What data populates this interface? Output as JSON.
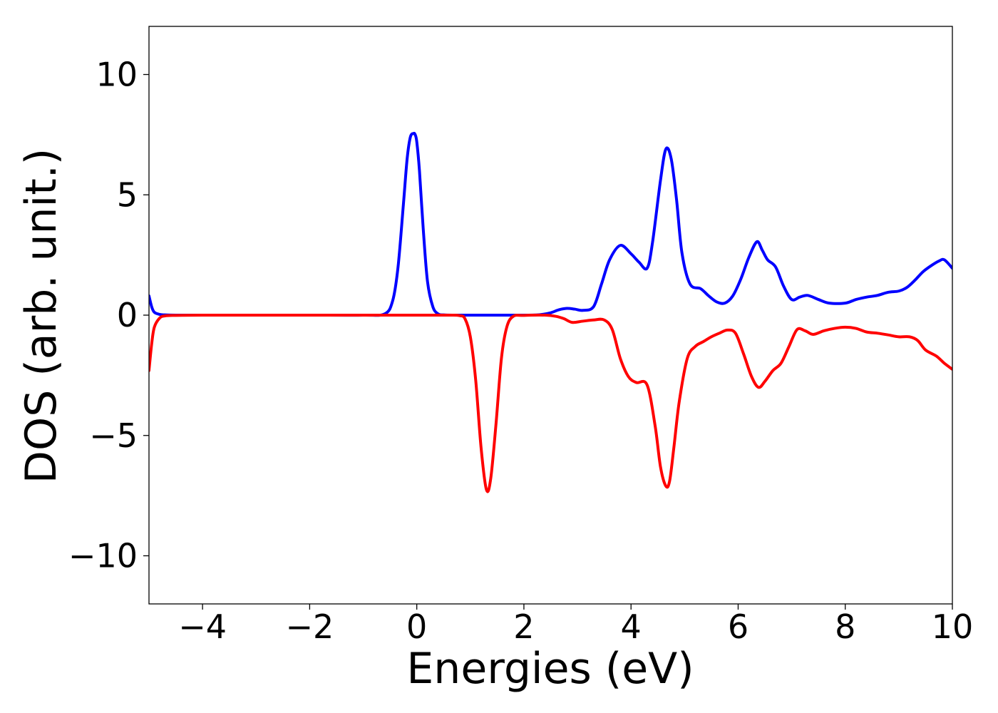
{
  "chart_data": {
    "type": "line",
    "title": "",
    "xlabel": "Energies (eV)",
    "ylabel": "DOS (arb. unit.)",
    "xlim": [
      -5,
      10
    ],
    "ylim": [
      -12,
      12
    ],
    "x_ticks": [
      -4,
      -2,
      0,
      2,
      4,
      6,
      8,
      10
    ],
    "y_ticks": [
      -10,
      -5,
      0,
      5,
      10
    ],
    "x_tick_labels": [
      "−4",
      "−2",
      "0",
      "2",
      "4",
      "6",
      "8",
      "10"
    ],
    "y_tick_labels": [
      "−10",
      "−5",
      "0",
      "5",
      "10"
    ],
    "grid": false,
    "legend": "none",
    "series": [
      {
        "color": "#0000ff",
        "x": [
          -5.0,
          -4.95,
          -4.9,
          -4.8,
          -4.7,
          -4.5,
          -4.0,
          -3.0,
          -2.0,
          -1.0,
          -0.6,
          -0.45,
          -0.35,
          -0.25,
          -0.18,
          -0.12,
          -0.06,
          -0.03,
          0.0,
          0.05,
          0.12,
          0.2,
          0.3,
          0.4,
          0.5,
          0.7,
          1.0,
          1.5,
          2.0,
          2.3,
          2.5,
          2.65,
          2.8,
          2.95,
          3.1,
          3.3,
          3.45,
          3.6,
          3.8,
          4.0,
          4.15,
          4.3,
          4.4,
          4.55,
          4.65,
          4.75,
          4.85,
          4.95,
          5.1,
          5.3,
          5.45,
          5.6,
          5.75,
          5.9,
          6.05,
          6.2,
          6.35,
          6.45,
          6.55,
          6.7,
          6.85,
          7.0,
          7.15,
          7.3,
          7.5,
          7.7,
          8.0,
          8.2,
          8.4,
          8.6,
          8.8,
          9.0,
          9.15,
          9.3,
          9.45,
          9.6,
          9.75,
          9.85,
          10.0
        ],
        "y": [
          0.8,
          0.35,
          0.12,
          0.03,
          0.01,
          0.0,
          0.0,
          0.0,
          0.0,
          0.0,
          0.05,
          0.6,
          2.0,
          4.6,
          6.5,
          7.4,
          7.55,
          7.5,
          7.2,
          6.0,
          3.6,
          1.4,
          0.35,
          0.05,
          0.01,
          0.0,
          0.0,
          0.0,
          0.0,
          0.02,
          0.1,
          0.22,
          0.28,
          0.25,
          0.2,
          0.35,
          1.3,
          2.3,
          2.9,
          2.55,
          2.2,
          1.95,
          3.0,
          5.6,
          6.9,
          6.5,
          4.8,
          2.6,
          1.3,
          1.1,
          0.8,
          0.55,
          0.5,
          0.8,
          1.5,
          2.4,
          3.05,
          2.7,
          2.3,
          2.0,
          1.2,
          0.65,
          0.75,
          0.82,
          0.65,
          0.5,
          0.5,
          0.65,
          0.75,
          0.82,
          0.95,
          1.0,
          1.15,
          1.45,
          1.8,
          2.05,
          2.25,
          2.3,
          1.95
        ]
      },
      {
        "color": "#ff0000",
        "x": [
          -5.0,
          -4.95,
          -4.9,
          -4.8,
          -4.7,
          -4.5,
          -4.0,
          -3.0,
          -2.0,
          -1.0,
          0.0,
          0.6,
          0.8,
          0.9,
          1.0,
          1.1,
          1.2,
          1.3,
          1.38,
          1.48,
          1.58,
          1.68,
          1.8,
          2.0,
          2.4,
          2.6,
          2.75,
          2.9,
          3.1,
          3.3,
          3.5,
          3.65,
          3.8,
          3.95,
          4.1,
          4.3,
          4.45,
          4.55,
          4.65,
          4.72,
          4.8,
          4.9,
          5.05,
          5.2,
          5.35,
          5.5,
          5.65,
          5.8,
          5.95,
          6.1,
          6.25,
          6.38,
          6.5,
          6.65,
          6.8,
          6.95,
          7.1,
          7.25,
          7.4,
          7.6,
          7.8,
          8.0,
          8.2,
          8.4,
          8.6,
          8.8,
          9.0,
          9.2,
          9.35,
          9.5,
          9.7,
          9.85,
          10.0
        ],
        "y": [
          -2.3,
          -1.2,
          -0.5,
          -0.12,
          -0.03,
          -0.01,
          0.0,
          0.0,
          0.0,
          0.0,
          0.0,
          0.0,
          -0.02,
          -0.15,
          -0.9,
          -2.7,
          -5.5,
          -7.25,
          -6.8,
          -4.5,
          -1.8,
          -0.5,
          -0.05,
          -0.01,
          0.0,
          -0.05,
          -0.15,
          -0.3,
          -0.25,
          -0.2,
          -0.2,
          -0.6,
          -1.8,
          -2.55,
          -2.8,
          -2.9,
          -4.6,
          -6.3,
          -7.1,
          -6.9,
          -5.5,
          -3.6,
          -1.8,
          -1.3,
          -1.1,
          -0.9,
          -0.75,
          -0.62,
          -0.75,
          -1.6,
          -2.55,
          -3.0,
          -2.75,
          -2.3,
          -2.0,
          -1.3,
          -0.6,
          -0.65,
          -0.8,
          -0.65,
          -0.55,
          -0.5,
          -0.55,
          -0.7,
          -0.75,
          -0.82,
          -0.9,
          -0.9,
          -1.05,
          -1.45,
          -1.7,
          -2.0,
          -2.25
        ]
      }
    ]
  }
}
